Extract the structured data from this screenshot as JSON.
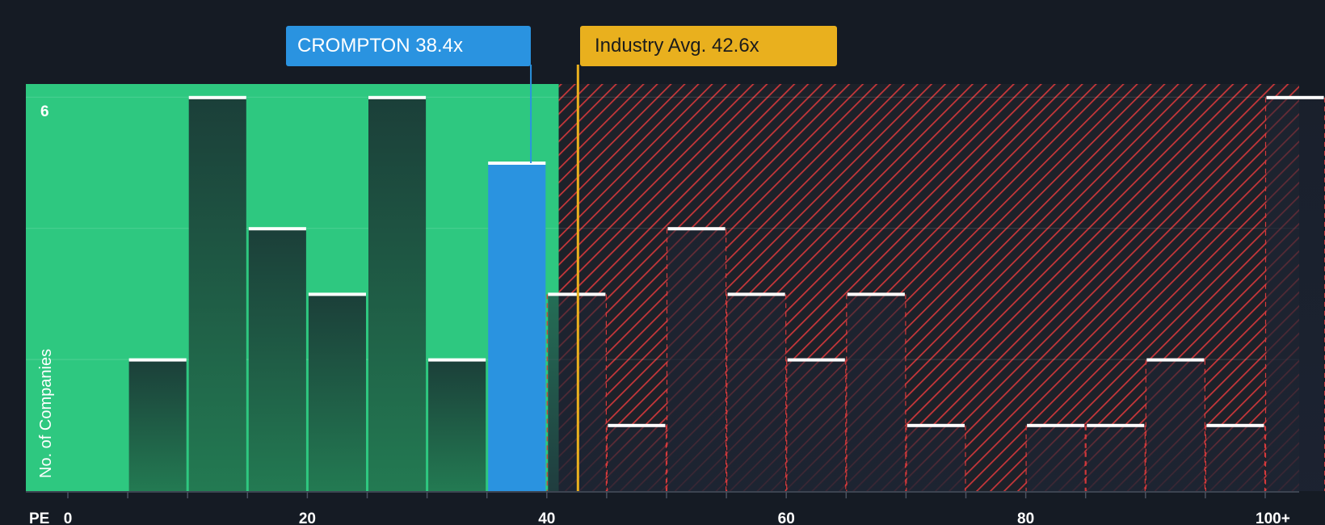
{
  "chart_data": {
    "type": "bar",
    "x_axis_label": "PE",
    "y_axis_label": "No. of Companies",
    "x_ticks": [
      "0",
      "20",
      "40",
      "60",
      "80",
      "100+"
    ],
    "x_tick_values": [
      0,
      20,
      40,
      60,
      80,
      100
    ],
    "y_ticks": [
      "6"
    ],
    "y_tick_values": [
      6
    ],
    "xlim": [
      0,
      102.5
    ],
    "ylim": [
      0,
      6.2
    ],
    "bin_width": 5,
    "bins": [
      {
        "x_start": 5,
        "value": 2
      },
      {
        "x_start": 10,
        "value": 6
      },
      {
        "x_start": 15,
        "value": 4
      },
      {
        "x_start": 20,
        "value": 3
      },
      {
        "x_start": 25,
        "value": 6
      },
      {
        "x_start": 30,
        "value": 2
      },
      {
        "x_start": 35,
        "value": 5,
        "highlight": true
      },
      {
        "x_start": 40,
        "value": 3
      },
      {
        "x_start": 45,
        "value": 1
      },
      {
        "x_start": 50,
        "value": 4
      },
      {
        "x_start": 55,
        "value": 3
      },
      {
        "x_start": 60,
        "value": 2
      },
      {
        "x_start": 65,
        "value": 3
      },
      {
        "x_start": 70,
        "value": 1
      },
      {
        "x_start": 80,
        "value": 1
      },
      {
        "x_start": 85,
        "value": 1
      },
      {
        "x_start": 90,
        "value": 2
      },
      {
        "x_start": 95,
        "value": 1
      },
      {
        "x_start": 100,
        "value": 6
      }
    ],
    "company": {
      "label": "CROMPTON 38.4x",
      "value": 38.4
    },
    "industry_avg": {
      "label": "Industry Avg. 42.6x",
      "value": 42.6
    },
    "fair_zone_end": 41.0,
    "grid": true
  },
  "colors": {
    "background": "#151b24",
    "fair_zone": "#2ec880",
    "overvalued_zone": "#d63a3d",
    "bar_dark": "#1f4a3c",
    "bar_highlight": "#2a93e0",
    "industry_line": "#e9b01e",
    "bar_cap": "#ffffff"
  }
}
